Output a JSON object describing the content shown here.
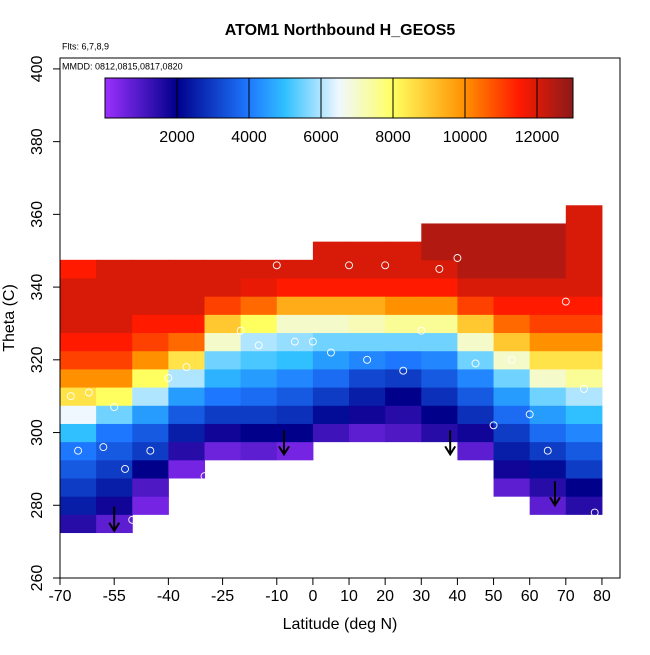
{
  "chart_data": {
    "type": "heatmap",
    "title": "ATOM1 Northbound H_GEOS5",
    "annotations": [
      "Flts: 6,7,8,9",
      "MMDD: 0812,0815,0817,0820"
    ],
    "x_label": "Latitude (deg N)",
    "y_label": "Theta (C)",
    "x": [
      -65,
      -55,
      -45,
      -35,
      -25,
      -15,
      -5,
      5,
      15,
      25,
      35,
      45,
      55,
      65,
      75
    ],
    "y": [
      275,
      280,
      285,
      290,
      295,
      300,
      305,
      310,
      315,
      320,
      325,
      330,
      335,
      340,
      345,
      350,
      355,
      360
    ],
    "z": [
      [
        1500,
        2500,
        3000,
        3500,
        4000,
        5000,
        6500,
        8500,
        10000,
        11000,
        11500,
        12000,
        12000,
        12000,
        11500,
        null,
        null,
        null
      ],
      [
        800,
        1800,
        2500,
        3000,
        3500,
        4000,
        5500,
        8000,
        10000,
        11000,
        11500,
        12000,
        12000,
        12000,
        12000,
        null,
        null,
        null
      ],
      [
        null,
        500,
        1000,
        2000,
        3000,
        3500,
        4500,
        6000,
        8000,
        10000,
        11000,
        11500,
        12000,
        12000,
        12000,
        null,
        null,
        null
      ],
      [
        null,
        null,
        null,
        500,
        1500,
        2500,
        3500,
        4500,
        6000,
        8500,
        10500,
        11500,
        12000,
        12000,
        12000,
        null,
        null,
        null
      ],
      [
        null,
        null,
        null,
        null,
        600,
        1800,
        3000,
        4000,
        4800,
        5500,
        7000,
        9000,
        11000,
        12000,
        12000,
        null,
        null,
        null
      ],
      [
        null,
        null,
        null,
        null,
        800,
        2000,
        3000,
        3800,
        4500,
        5200,
        6000,
        8000,
        10500,
        11800,
        12000,
        null,
        null,
        null
      ],
      [
        null,
        null,
        null,
        null,
        500,
        2000,
        2800,
        3500,
        4200,
        5000,
        5800,
        7000,
        9500,
        11500,
        12000,
        null,
        null,
        null
      ],
      [
        null,
        null,
        null,
        null,
        null,
        1200,
        2200,
        3000,
        3800,
        4500,
        5500,
        7000,
        9500,
        11500,
        12000,
        12000,
        null,
        null
      ],
      [
        null,
        null,
        null,
        null,
        null,
        800,
        1800,
        2500,
        3200,
        4200,
        5500,
        7200,
        9500,
        11500,
        12000,
        12000,
        null,
        null
      ],
      [
        null,
        null,
        null,
        null,
        null,
        1000,
        1500,
        2000,
        3000,
        4000,
        5500,
        7500,
        10000,
        11500,
        12000,
        12000,
        null,
        null
      ],
      [
        null,
        null,
        null,
        null,
        null,
        1500,
        2000,
        2800,
        3500,
        4200,
        5500,
        7500,
        10000,
        11500,
        12000,
        12500,
        12500,
        null
      ],
      [
        null,
        null,
        null,
        null,
        800,
        1800,
        2800,
        3500,
        4200,
        5500,
        7000,
        9000,
        11000,
        12000,
        12500,
        12500,
        12500,
        null
      ],
      [
        null,
        null,
        800,
        1800,
        2500,
        3000,
        3800,
        4500,
        5500,
        7000,
        9000,
        10500,
        11500,
        12000,
        12500,
        12500,
        12500,
        null
      ],
      [
        null,
        800,
        1500,
        2200,
        3000,
        3800,
        4500,
        5500,
        7000,
        8500,
        10000,
        11000,
        11500,
        12000,
        12500,
        12500,
        12500,
        null
      ],
      [
        null,
        1500,
        2000,
        3000,
        3500,
        4200,
        5000,
        6000,
        7500,
        8500,
        10000,
        11000,
        11500,
        12000,
        12000,
        12000,
        12000,
        12000
      ]
    ],
    "points": {
      "x": [
        -67,
        -65,
        -62,
        -58,
        -55,
        -52,
        -50,
        -45,
        -40,
        -35,
        -30,
        -25,
        -20,
        -15,
        -10,
        -5,
        0,
        5,
        10,
        15,
        20,
        25,
        30,
        35,
        40,
        45,
        50,
        55,
        60,
        65,
        70,
        75,
        78
      ],
      "y": [
        310,
        295,
        311,
        296,
        307,
        290,
        276,
        295,
        315,
        318,
        288,
        291,
        328,
        324,
        346,
        325,
        325,
        322,
        346,
        320,
        346,
        317,
        328,
        345,
        348,
        319,
        302,
        320,
        305,
        295,
        336,
        312,
        278
      ]
    },
    "arrows": {
      "x": [
        -55,
        -8,
        38,
        67
      ],
      "y": [
        273,
        294,
        294,
        280
      ]
    },
    "xlim": [
      -70,
      85
    ],
    "ylim": [
      260,
      403
    ],
    "xticks": [
      -70,
      -55,
      -40,
      -25,
      -10,
      0,
      10,
      20,
      30,
      40,
      50,
      60,
      70,
      80
    ],
    "yticks": [
      260,
      280,
      300,
      320,
      340,
      360,
      380,
      400
    ],
    "zlim": [
      0,
      13000
    ],
    "zticks": [
      2000,
      4000,
      6000,
      8000,
      10000,
      12000
    ],
    "colorscale": [
      {
        "value": 0,
        "color": "#9b30ff"
      },
      {
        "value": 2000,
        "color": "#00008b"
      },
      {
        "value": 4000,
        "color": "#1e78ff"
      },
      {
        "value": 5000,
        "color": "#30c0ff"
      },
      {
        "value": 6500,
        "color": "#f0f8ff"
      },
      {
        "value": 8000,
        "color": "#ffff60"
      },
      {
        "value": 10000,
        "color": "#ff9000"
      },
      {
        "value": 11500,
        "color": "#ff1a00"
      },
      {
        "value": 13000,
        "color": "#8b1a1a"
      }
    ]
  }
}
